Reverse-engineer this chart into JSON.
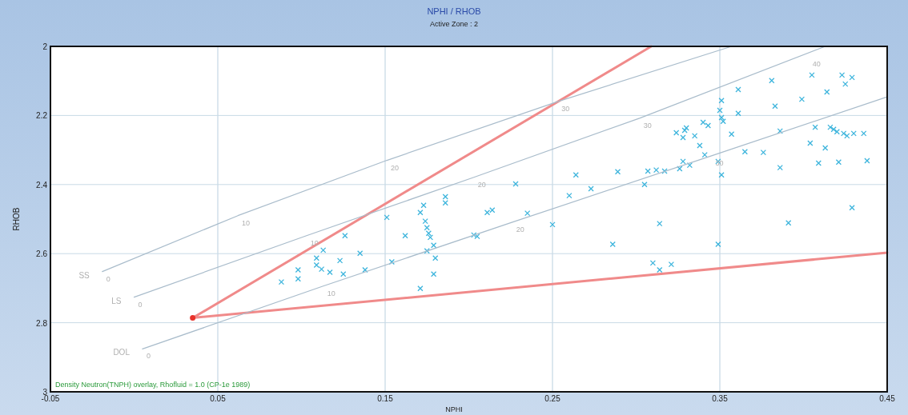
{
  "chart_data": {
    "type": "scatter",
    "title": "NPHI / RHOB",
    "subtitle": "Active Zone : 2",
    "xlabel": "NPHI",
    "ylabel": "RHOB",
    "xlim": [
      -0.05,
      0.45
    ],
    "xticks": [
      -0.05,
      0.05,
      0.15,
      0.25,
      0.35,
      0.45
    ],
    "ylim": [
      3,
      2
    ],
    "yticks": [
      2,
      2.2,
      2.4,
      2.6,
      2.8,
      3
    ],
    "grid": true,
    "annotations": [
      "Density Neutron(TNPH) overlay, Rhofluid = 1.0 (CP-1e 1989)",
      {
        "text": "0",
        "x": -0.019,
        "y": 2.652
      },
      {
        "text": "10",
        "x": 0.062,
        "y": 2.49
      },
      {
        "text": "20",
        "x": 0.151,
        "y": 2.33
      },
      {
        "text": "30",
        "x": 0.253,
        "y": 2.16
      },
      {
        "text": "0",
        "x": 0.0,
        "y": 2.726
      },
      {
        "text": "10",
        "x": 0.103,
        "y": 2.548
      },
      {
        "text": "20",
        "x": 0.203,
        "y": 2.379
      },
      {
        "text": "30",
        "x": 0.302,
        "y": 2.208
      },
      {
        "text": "40",
        "x": 0.403,
        "y": 2.03
      },
      {
        "text": "0",
        "x": 0.005,
        "y": 2.876
      },
      {
        "text": "10",
        "x": 0.113,
        "y": 2.694
      },
      {
        "text": "20",
        "x": 0.226,
        "y": 2.509
      },
      {
        "text": "30",
        "x": 0.345,
        "y": 2.317
      }
    ],
    "series": [
      {
        "name": "SS",
        "type": "line",
        "color": "#a9bccb",
        "marker": "none",
        "x": [
          -0.019,
          0.062,
          0.151,
          0.253,
          0.357
        ],
        "values": [
          2.652,
          2.49,
          2.33,
          2.16,
          2.0
        ]
      },
      {
        "name": "LS",
        "type": "line",
        "color": "#a9bccb",
        "marker": "none",
        "x": [
          0.0,
          0.103,
          0.203,
          0.302,
          0.413
        ],
        "values": [
          2.726,
          2.548,
          2.379,
          2.208,
          2.0
        ]
      },
      {
        "name": "DOL",
        "type": "line",
        "color": "#a9bccb",
        "marker": "none",
        "x": [
          0.005,
          0.113,
          0.226,
          0.345,
          0.45
        ],
        "values": [
          2.876,
          2.694,
          2.509,
          2.317,
          2.146
        ]
      },
      {
        "type": "line",
        "color": "#f08a8a",
        "marker": "none",
        "x": [
          0.309,
          0.035,
          0.45
        ],
        "values": [
          2.0,
          2.786,
          2.597
        ]
      },
      {
        "color": "#e8322a",
        "marker": "circle",
        "x": [
          0.035
        ],
        "values": [
          2.786
        ]
      },
      {
        "color": "#3cb4dc",
        "marker": "cross",
        "x": [
          0.088,
          0.098,
          0.098,
          0.109,
          0.109,
          0.112,
          0.113,
          0.117,
          0.123,
          0.125,
          0.126,
          0.135,
          0.138,
          0.151,
          0.154,
          0.162,
          0.171,
          0.173,
          0.174,
          0.175,
          0.176,
          0.177,
          0.179,
          0.175,
          0.18,
          0.179,
          0.171,
          0.186,
          0.186,
          0.203,
          0.205,
          0.211,
          0.214,
          0.228,
          0.235,
          0.25,
          0.26,
          0.264,
          0.273,
          0.286,
          0.289,
          0.305,
          0.307,
          0.31,
          0.312,
          0.314,
          0.314,
          0.317,
          0.321,
          0.326,
          0.328,
          0.332,
          0.341,
          0.349,
          0.351,
          0.349,
          0.324,
          0.328,
          0.329,
          0.33,
          0.335,
          0.338,
          0.34,
          0.343,
          0.351,
          0.35,
          0.351,
          0.352,
          0.361,
          0.361,
          0.357,
          0.365,
          0.376,
          0.381,
          0.383,
          0.386,
          0.386,
          0.391,
          0.399,
          0.405,
          0.404,
          0.407,
          0.409,
          0.413,
          0.414,
          0.416,
          0.418,
          0.42,
          0.423,
          0.425,
          0.424,
          0.426,
          0.429,
          0.429,
          0.43,
          0.436,
          0.438,
          0.421
        ],
        "values": [
          2.682,
          2.647,
          2.673,
          2.613,
          2.633,
          2.645,
          2.59,
          2.654,
          2.62,
          2.659,
          2.548,
          2.599,
          2.647,
          2.495,
          2.624,
          2.548,
          2.481,
          2.46,
          2.506,
          2.525,
          2.541,
          2.553,
          2.576,
          2.592,
          2.613,
          2.659,
          2.701,
          2.453,
          2.435,
          2.546,
          2.55,
          2.481,
          2.474,
          2.398,
          2.483,
          2.516,
          2.432,
          2.372,
          2.412,
          2.573,
          2.363,
          2.4,
          2.361,
          2.627,
          2.358,
          2.647,
          2.513,
          2.361,
          2.631,
          2.354,
          2.333,
          2.344,
          2.314,
          2.333,
          2.372,
          2.573,
          2.25,
          2.264,
          2.243,
          2.236,
          2.259,
          2.287,
          2.22,
          2.229,
          2.157,
          2.185,
          2.206,
          2.217,
          2.125,
          2.194,
          2.254,
          2.305,
          2.307,
          2.099,
          2.173,
          2.245,
          2.351,
          2.511,
          2.153,
          2.083,
          2.28,
          2.234,
          2.338,
          2.294,
          2.132,
          2.234,
          2.24,
          2.247,
          2.083,
          2.109,
          2.252,
          2.259,
          2.09,
          2.467,
          2.252,
          2.252,
          2.331,
          2.335
        ]
      }
    ]
  }
}
